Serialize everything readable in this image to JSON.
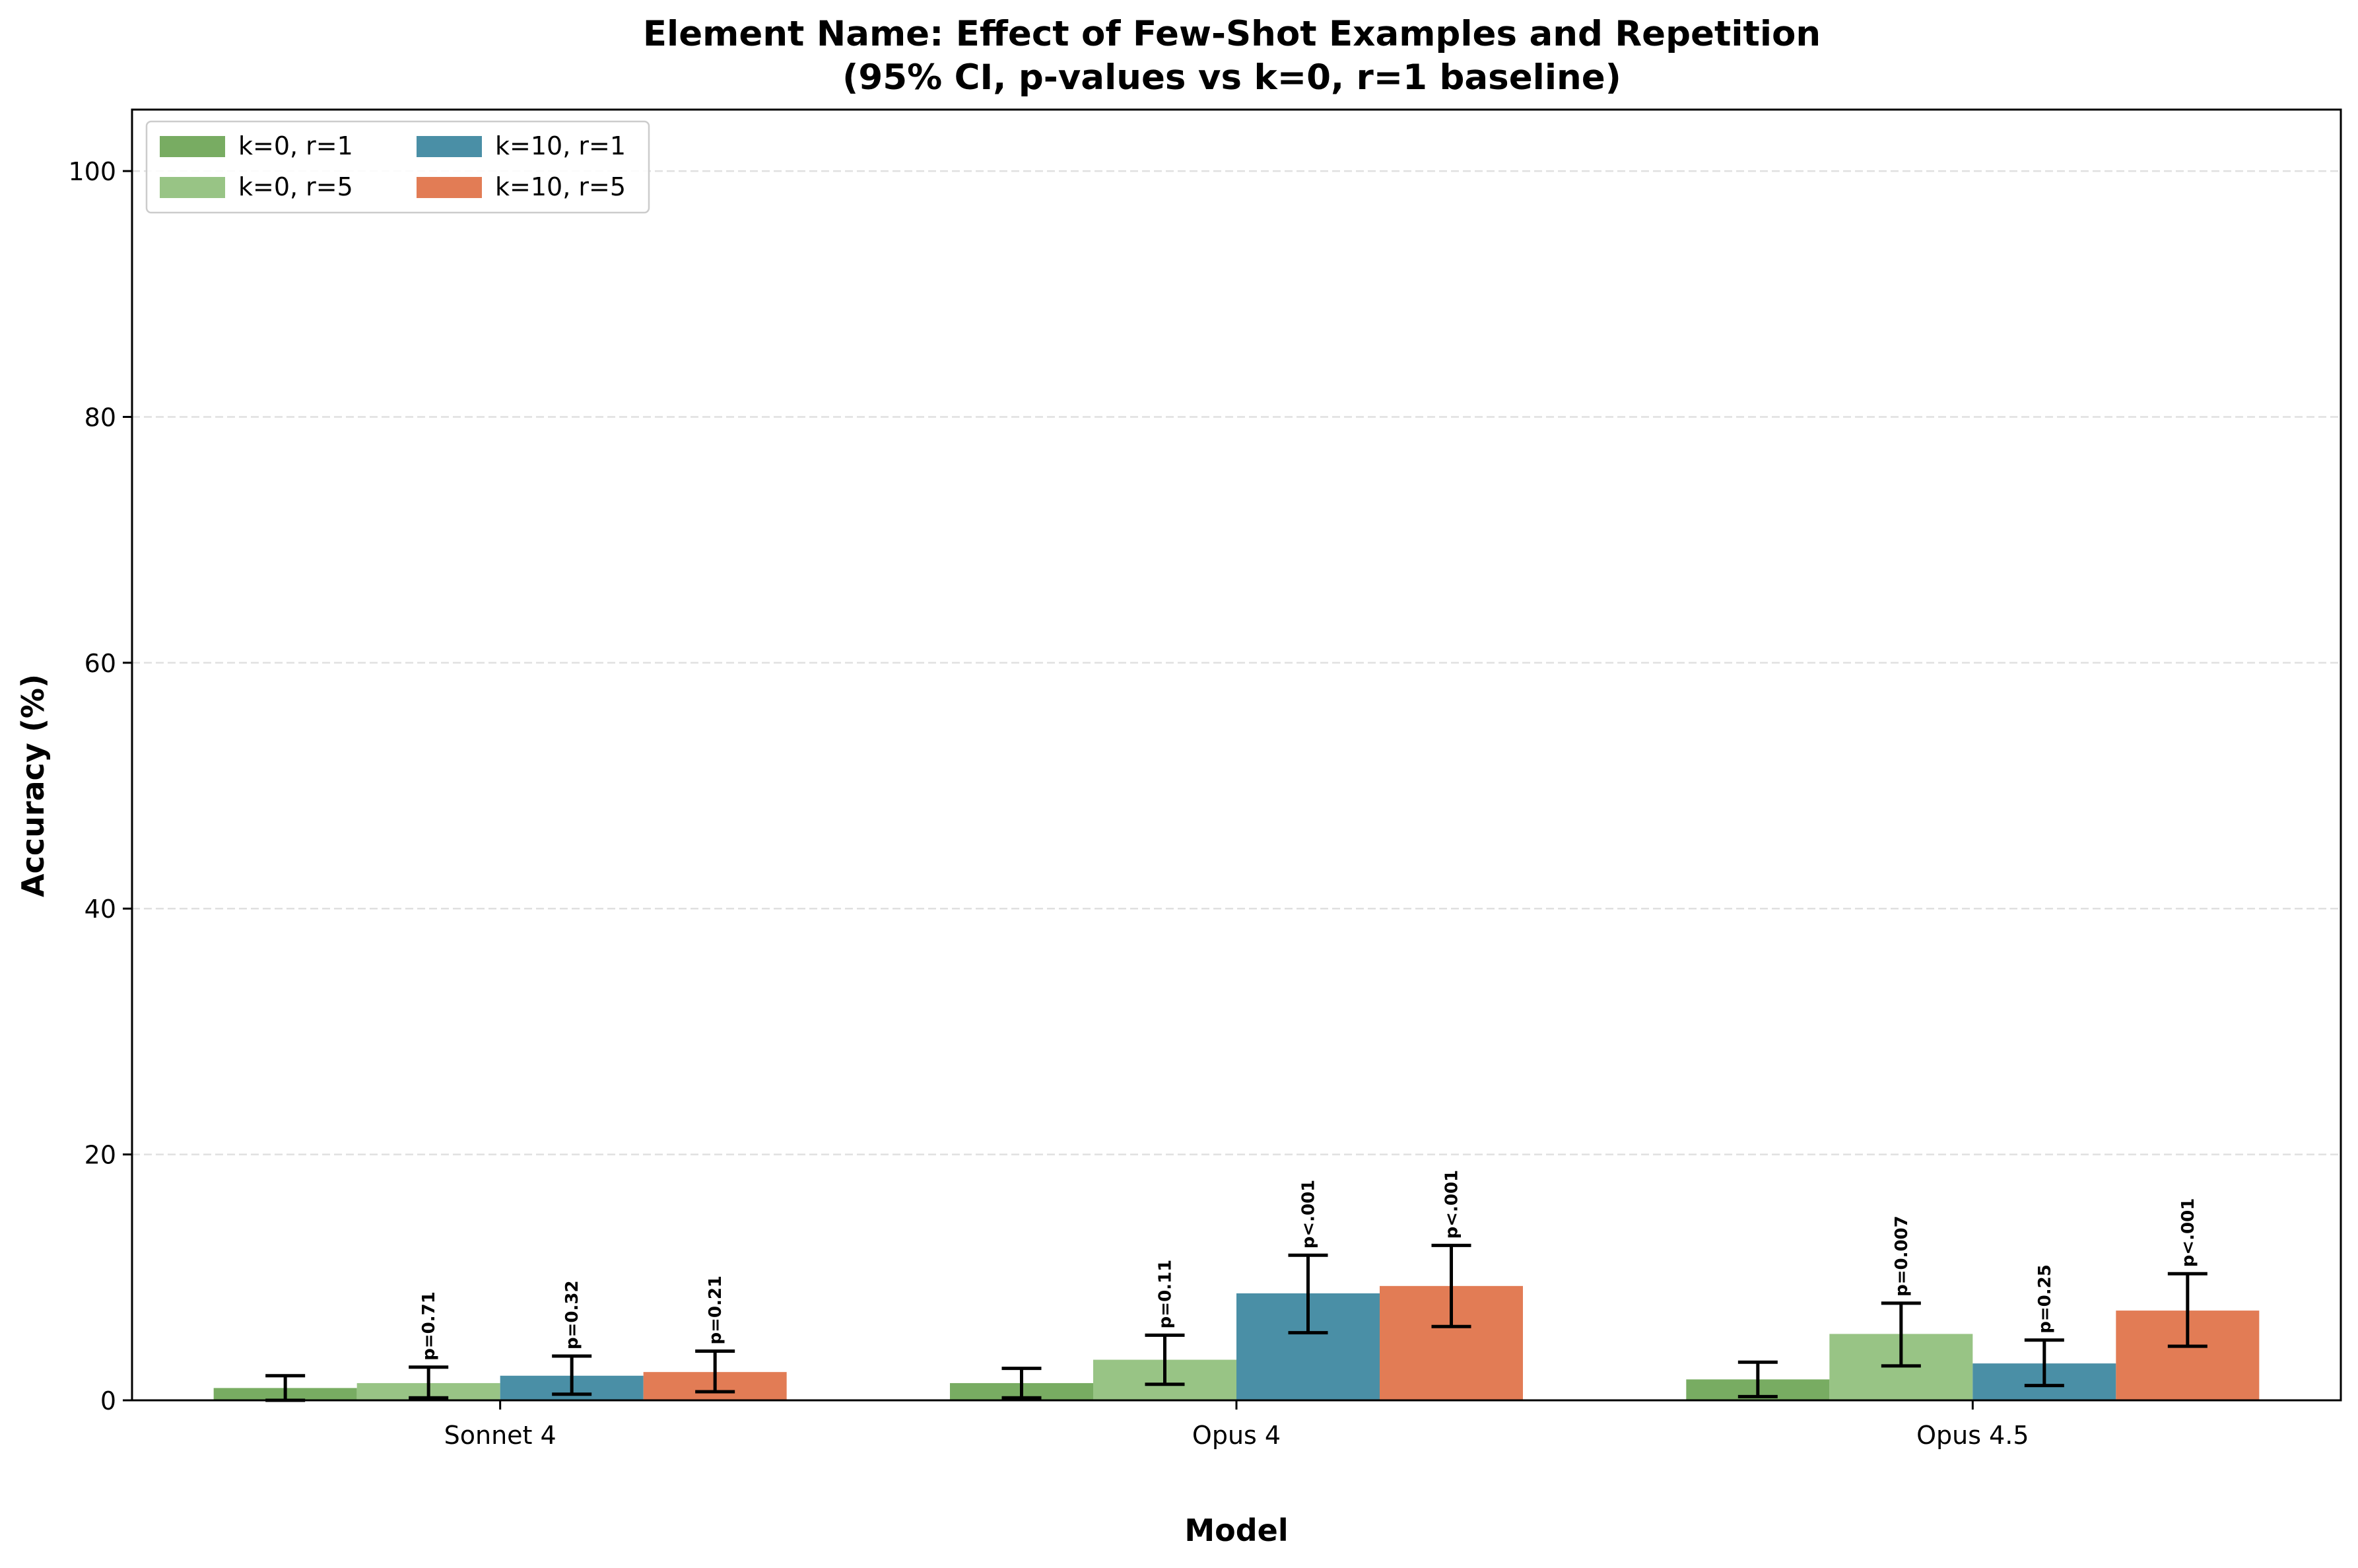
{
  "chart_data": {
    "type": "bar",
    "title_line1": "Element Name: Effect of Few-Shot Examples and Repetition",
    "title_line2": "(95% CI, p-values vs k=0, r=1 baseline)",
    "xlabel": "Model",
    "ylabel": "Accuracy (%)",
    "ylim": [
      0,
      105
    ],
    "yticks": [
      0,
      20,
      40,
      60,
      80,
      100
    ],
    "grid": true,
    "legend_placement": "top-left",
    "categories": [
      "Sonnet 4",
      "Opus 4",
      "Opus 4.5"
    ],
    "series": [
      {
        "name": "k=0, r=1",
        "color": "#78ac62",
        "values": [
          1.0,
          1.4,
          1.7
        ],
        "ci_low": [
          0.0,
          0.2,
          0.3
        ],
        "ci_high": [
          2.0,
          2.6,
          3.1
        ],
        "pvalues": [
          "",
          "",
          ""
        ]
      },
      {
        "name": "k=0, r=5",
        "color": "#98c485",
        "values": [
          1.4,
          3.3,
          5.4
        ],
        "ci_low": [
          0.2,
          1.3,
          2.8
        ],
        "ci_high": [
          2.7,
          5.3,
          7.9
        ],
        "pvalues": [
          "p=0.71",
          "p=0.11",
          "p=0.007"
        ]
      },
      {
        "name": "k=10, r=1",
        "color": "#4a8fa6",
        "values": [
          2.0,
          8.7,
          3.0
        ],
        "ci_low": [
          0.5,
          5.5,
          1.2
        ],
        "ci_high": [
          3.6,
          11.8,
          4.9
        ],
        "pvalues": [
          "p=0.32",
          "p<.001",
          "p=0.25"
        ]
      },
      {
        "name": "k=10, r=5",
        "color": "#e27c55",
        "values": [
          2.3,
          9.3,
          7.3
        ],
        "ci_low": [
          0.7,
          6.0,
          4.4
        ],
        "ci_high": [
          4.0,
          12.6,
          10.3
        ],
        "pvalues": [
          "p=0.21",
          "p<.001",
          "p<.001"
        ]
      }
    ]
  }
}
